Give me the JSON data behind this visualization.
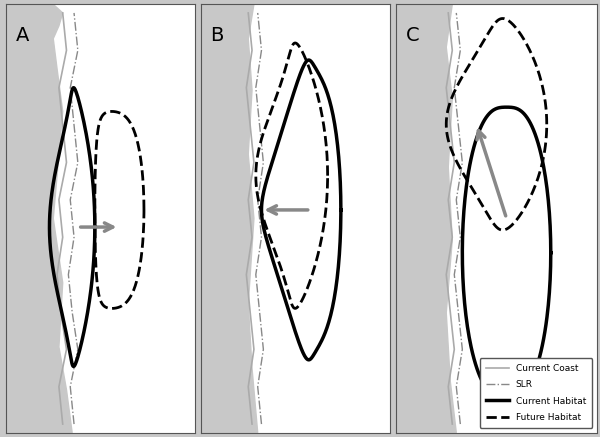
{
  "fig_width": 6.0,
  "fig_height": 4.37,
  "dpi": 100,
  "bg_color": "#c8c8c8",
  "panel_bg": "#ffffff",
  "panel_labels": [
    "A",
    "B",
    "C"
  ],
  "coast_color": "#aaaaaa",
  "slr_color": "#888888",
  "current_habitat_color": "#000000",
  "future_habitat_color": "#000000",
  "arrow_color": "#888888",
  "legend_items": [
    {
      "label": "Current Coast",
      "lw": 1.0,
      "ls": "-",
      "color": "#aaaaaa"
    },
    {
      "label": "SLR",
      "lw": 1.0,
      "ls": "-.",
      "color": "#888888"
    },
    {
      "label": "Current Habitat",
      "lw": 2.5,
      "ls": "-",
      "color": "#000000"
    },
    {
      "label": "Future Habitat",
      "lw": 2.0,
      "ls": "--",
      "color": "#000000"
    }
  ]
}
